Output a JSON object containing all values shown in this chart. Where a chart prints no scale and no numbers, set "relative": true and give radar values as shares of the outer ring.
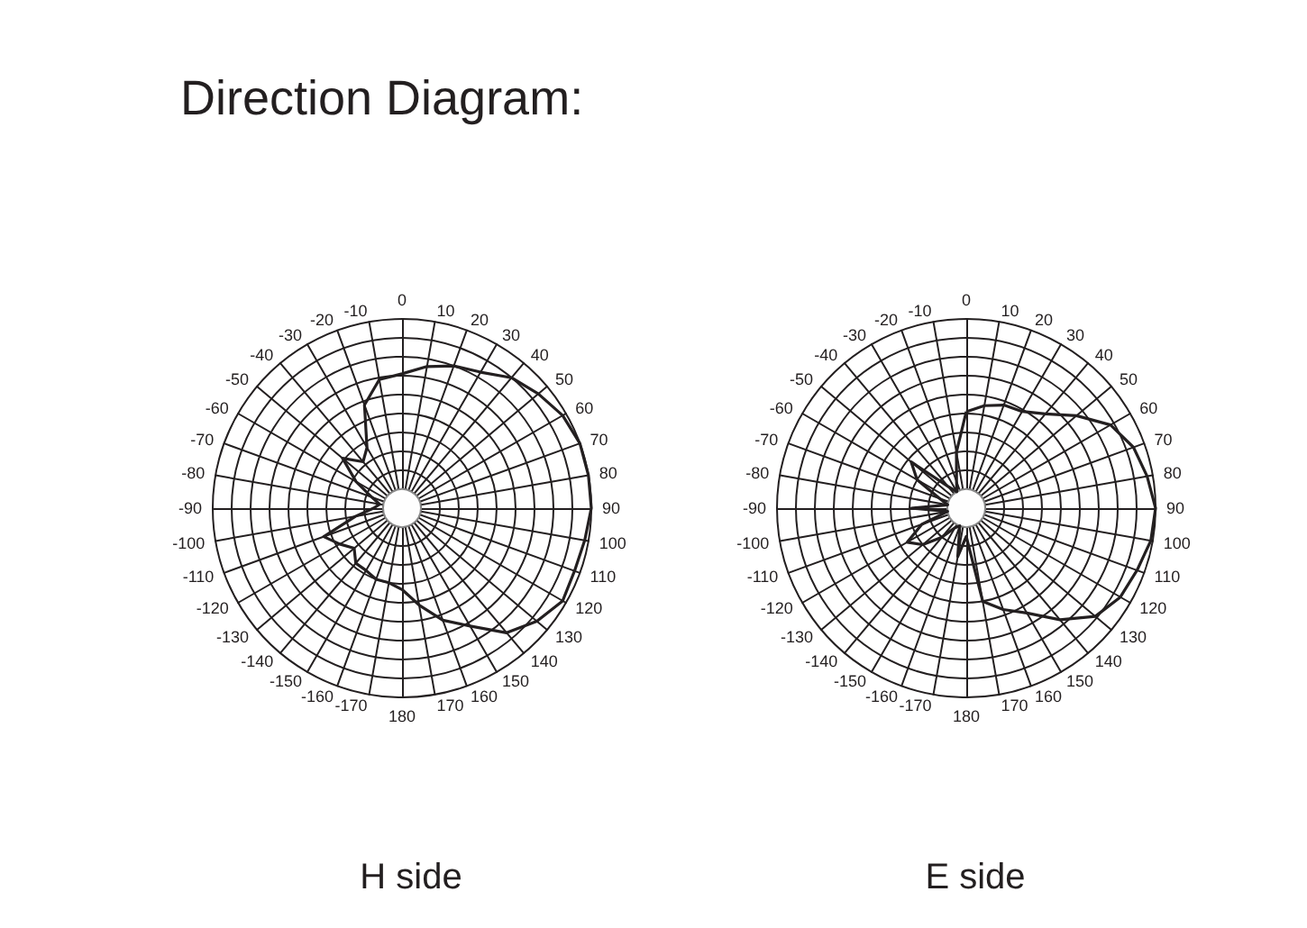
{
  "chart_data": [
    {
      "type": "radar",
      "title": "Direction Diagram:",
      "xlabel": "H side",
      "relative": true,
      "grid": true,
      "marker": "none",
      "line_style": "solid",
      "categories": [
        "0",
        "10",
        "20",
        "30",
        "40",
        "50",
        "60",
        "70",
        "80",
        "90",
        "100",
        "110",
        "120",
        "130",
        "140",
        "150",
        "160",
        "170",
        "180",
        "-170",
        "-160",
        "-150",
        "-140",
        "-130",
        "-120",
        "-110",
        "-100",
        "-90",
        "-80",
        "-70",
        "-60",
        "-50",
        "-40",
        "-30",
        "-20",
        "-10"
      ],
      "series": [
        {
          "color": "#231f20",
          "values": [
            0.71,
            0.76,
            0.8,
            0.83,
            0.9,
            0.94,
            0.98,
            1.0,
            1.0,
            1.0,
            0.98,
            0.97,
            0.98,
            0.93,
            0.86,
            0.72,
            0.63,
            0.52,
            0.43,
            0.4,
            0.4,
            0.38,
            0.38,
            0.33,
            0.38,
            0.44,
            0.25,
            0.15,
            0.12,
            0.17,
            0.28,
            0.41,
            0.32,
            0.37,
            0.58,
            0.69
          ]
        }
      ]
    },
    {
      "type": "radar",
      "xlabel": "E side",
      "relative": true,
      "grid": true,
      "marker": "none",
      "line_style": "solid",
      "categories": [
        "0",
        "10",
        "20",
        "30",
        "40",
        "50",
        "60",
        "70",
        "80",
        "90",
        "100",
        "110",
        "120",
        "130",
        "140",
        "150",
        "160",
        "170",
        "180",
        "-170",
        "-160",
        "-150",
        "-140",
        "-130",
        "-120",
        "-110",
        "-100",
        "-90",
        "-80",
        "-70",
        "-60",
        "-50",
        "-40",
        "-30",
        "-20",
        "-10"
      ],
      "series": [
        {
          "color": "#231f20",
          "values": [
            0.51,
            0.55,
            0.58,
            0.59,
            0.65,
            0.76,
            0.88,
            0.94,
            0.97,
            1.0,
            0.99,
            0.96,
            0.94,
            0.89,
            0.77,
            0.64,
            0.57,
            0.5,
            0.15,
            0.26,
            0.1,
            0.12,
            0.2,
            0.3,
            0.36,
            0.25,
            0.1,
            0.29,
            0.1,
            0.15,
            0.3,
            0.38,
            0.15,
            0.1,
            0.15,
            0.3
          ]
        }
      ]
    }
  ]
}
